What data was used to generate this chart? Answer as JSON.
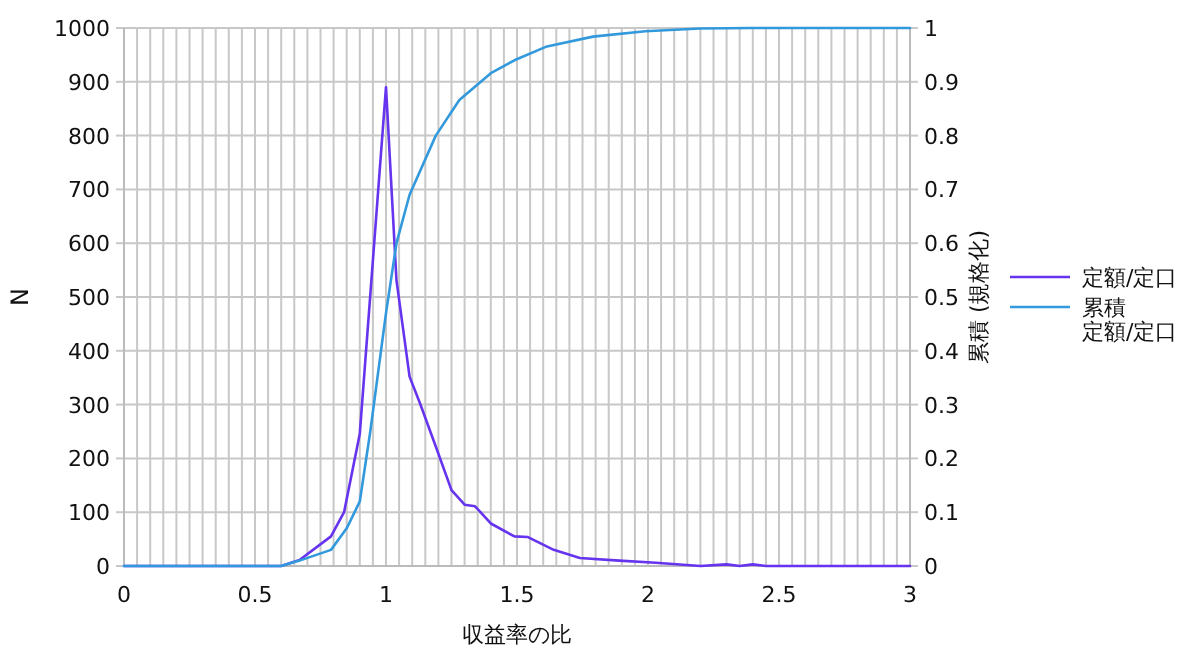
{
  "chart_data": {
    "type": "line",
    "xlabel": "収益率の比",
    "ylabel": "N",
    "y2label": "累積 (規格化)",
    "xlim": [
      0,
      3
    ],
    "xticks": [
      0,
      {
        "value": 0.05,
        "label": null
      },
      {
        "value": 0.1,
        "label": null
      },
      {
        "value": 0.15,
        "label": null
      },
      {
        "value": 0.2,
        "label": null
      },
      {
        "value": 0.25,
        "label": null
      },
      {
        "value": 0.3,
        "label": null
      },
      {
        "value": 0.35,
        "label": null
      },
      {
        "value": 0.4,
        "label": null
      },
      {
        "value": 0.45,
        "label": null
      },
      0.5,
      {
        "value": 0.55,
        "label": null
      },
      {
        "value": 0.6,
        "label": null
      },
      {
        "value": 0.65,
        "label": null
      },
      {
        "value": 0.7,
        "label": null
      },
      {
        "value": 0.75,
        "label": null
      },
      {
        "value": 0.8,
        "label": null
      },
      {
        "value": 0.85,
        "label": null
      },
      {
        "value": 0.9,
        "label": null
      },
      {
        "value": 0.95,
        "label": null
      },
      1,
      {
        "value": 1.05,
        "label": null
      },
      {
        "value": 1.1,
        "label": null
      },
      {
        "value": 1.15,
        "label": null
      },
      {
        "value": 1.2,
        "label": null
      },
      {
        "value": 1.25,
        "label": null
      },
      {
        "value": 1.3,
        "label": null
      },
      {
        "value": 1.35,
        "label": null
      },
      {
        "value": 1.4,
        "label": null
      },
      {
        "value": 1.45,
        "label": null
      },
      1.5,
      {
        "value": 1.55,
        "label": null
      },
      {
        "value": 1.6,
        "label": null
      },
      {
        "value": 1.65,
        "label": null
      },
      {
        "value": 1.7,
        "label": null
      },
      {
        "value": 1.75,
        "label": null
      },
      {
        "value": 1.8,
        "label": null
      },
      {
        "value": 1.85,
        "label": null
      },
      {
        "value": 1.9,
        "label": null
      },
      {
        "value": 1.95,
        "label": null
      },
      2,
      {
        "value": 2.05,
        "label": null
      },
      {
        "value": 2.1,
        "label": null
      },
      {
        "value": 2.15,
        "label": null
      },
      {
        "value": 2.2,
        "label": null
      },
      {
        "value": 2.25,
        "label": null
      },
      {
        "value": 2.3,
        "label": null
      },
      {
        "value": 2.35,
        "label": null
      },
      {
        "value": 2.4,
        "label": null
      },
      {
        "value": 2.45,
        "label": null
      },
      2.5,
      {
        "value": 2.55,
        "label": null
      },
      {
        "value": 2.6,
        "label": null
      },
      {
        "value": 2.65,
        "label": null
      },
      {
        "value": 2.7,
        "label": null
      },
      {
        "value": 2.75,
        "label": null
      },
      {
        "value": 2.8,
        "label": null
      },
      {
        "value": 2.85,
        "label": null
      },
      {
        "value": 2.9,
        "label": null
      },
      {
        "value": 2.95,
        "label": null
      },
      3
    ],
    "ylim": [
      0,
      1000
    ],
    "yticks": [
      0,
      100,
      200,
      300,
      400,
      500,
      600,
      700,
      800,
      900,
      1000
    ],
    "y2lim": [
      0,
      1
    ],
    "y2ticks": [
      0,
      0.1,
      0.2,
      0.3,
      0.4,
      0.5,
      0.6,
      0.7,
      0.8,
      0.9,
      1
    ],
    "grid": true,
    "legend": "right",
    "marker": "none",
    "line_style": "solid",
    "series": [
      {
        "name": "定額/定口",
        "color": "#6633ee",
        "x": [
          0,
          0.6,
          0.67,
          0.79,
          0.84,
          0.9,
          1.0,
          1.04,
          1.09,
          1.13,
          1.19,
          1.25,
          1.3,
          1.34,
          1.4,
          1.49,
          1.54,
          1.64,
          1.74,
          1.89,
          2.03,
          2.2,
          2.3,
          2.35,
          2.4,
          2.45,
          2.5,
          3
        ],
        "values": [
          0,
          0,
          11,
          55,
          100,
          246,
          890,
          531,
          352,
          302,
          222,
          141,
          114,
          111,
          79,
          55,
          54,
          30,
          15,
          10,
          6,
          0,
          3,
          0,
          3,
          0,
          0,
          0
        ]
      },
      {
        "name": "累積定額/定口",
        "color": "#3399dd",
        "axis": "y2",
        "x": [
          0,
          0.6,
          0.67,
          0.79,
          0.85,
          0.9,
          0.94,
          1.0,
          1.04,
          1.09,
          1.19,
          1.28,
          1.4,
          1.49,
          1.61,
          1.79,
          1.99,
          2.2,
          2.4,
          3
        ],
        "values": [
          0,
          0,
          0.01,
          0.03,
          0.07,
          0.12,
          0.25,
          0.47,
          0.6,
          0.69,
          0.8,
          0.866,
          0.916,
          0.94,
          0.965,
          0.984,
          0.994,
          0.999,
          1,
          1
        ]
      }
    ]
  }
}
